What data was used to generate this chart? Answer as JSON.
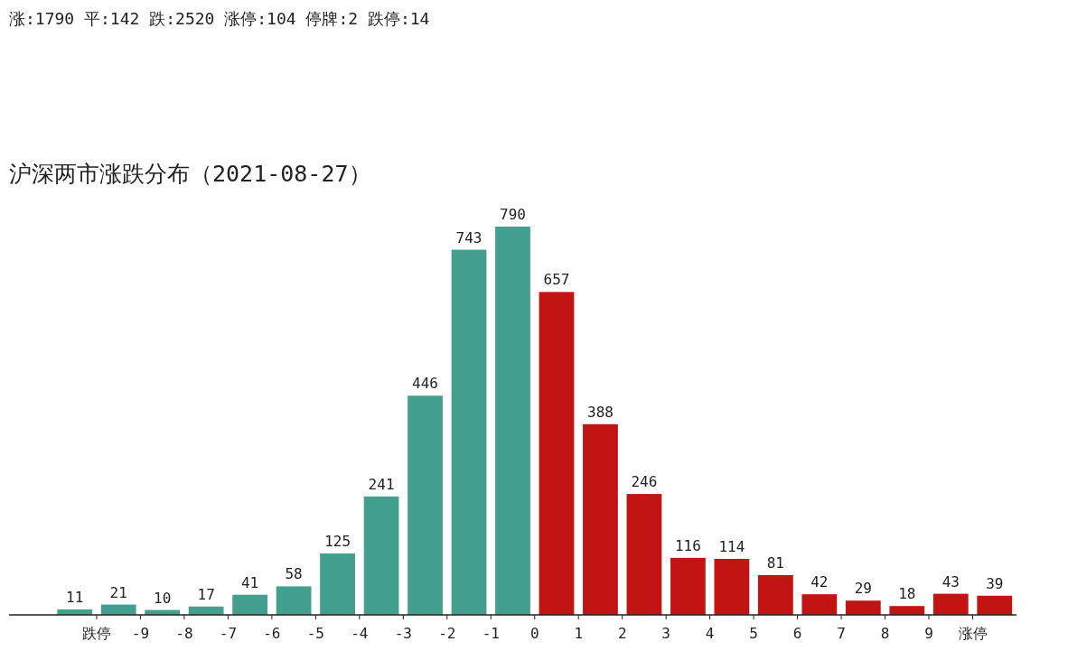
{
  "chart_data": {
    "type": "bar",
    "title": "沪深两市涨跌分布（2021-08-27）",
    "annotations": [
      "涨:1790 平:142 跌:2520 涨停:104 停牌:2 跌停:14"
    ],
    "x": [
      -10.5,
      -9.5,
      -8.5,
      -7.5,
      -6.5,
      -5.5,
      -4.5,
      -3.5,
      -2.5,
      -1.5,
      -0.5,
      0.5,
      1.5,
      2.5,
      3.5,
      4.5,
      5.5,
      6.5,
      7.5,
      8.5,
      9.5,
      10.5
    ],
    "values": [
      11,
      21,
      10,
      17,
      41,
      58,
      125,
      241,
      446,
      743,
      790,
      657,
      388,
      246,
      116,
      114,
      81,
      42,
      29,
      18,
      43,
      39
    ],
    "colors": [
      "#43a08e",
      "#43a08e",
      "#43a08e",
      "#43a08e",
      "#43a08e",
      "#43a08e",
      "#43a08e",
      "#43a08e",
      "#43a08e",
      "#43a08e",
      "#43a08e",
      "#c21413",
      "#c21413",
      "#c21413",
      "#c21413",
      "#c21413",
      "#c21413",
      "#c21413",
      "#c21413",
      "#c21413",
      "#c21413",
      "#c21413"
    ],
    "xlim": [
      -12,
      11
    ],
    "xticks": [
      {
        "value": -10,
        "label": "跌停"
      },
      {
        "value": -9,
        "label": "-9"
      },
      {
        "value": -8,
        "label": "-8"
      },
      {
        "value": -7,
        "label": "-7"
      },
      {
        "value": -6,
        "label": "-6"
      },
      {
        "value": -5,
        "label": "-5"
      },
      {
        "value": -4,
        "label": "-4"
      },
      {
        "value": -3,
        "label": "-3"
      },
      {
        "value": -2,
        "label": "-2"
      },
      {
        "value": -1,
        "label": "-1"
      },
      {
        "value": 0,
        "label": "0"
      },
      {
        "value": 1,
        "label": "1"
      },
      {
        "value": 2,
        "label": "2"
      },
      {
        "value": 3,
        "label": "3"
      },
      {
        "value": 4,
        "label": "4"
      },
      {
        "value": 5,
        "label": "5"
      },
      {
        "value": 6,
        "label": "6"
      },
      {
        "value": 7,
        "label": "7"
      },
      {
        "value": 8,
        "label": "8"
      },
      {
        "value": 9,
        "label": "9"
      },
      {
        "value": 10,
        "label": "涨停"
      }
    ],
    "data_labels": true
  }
}
